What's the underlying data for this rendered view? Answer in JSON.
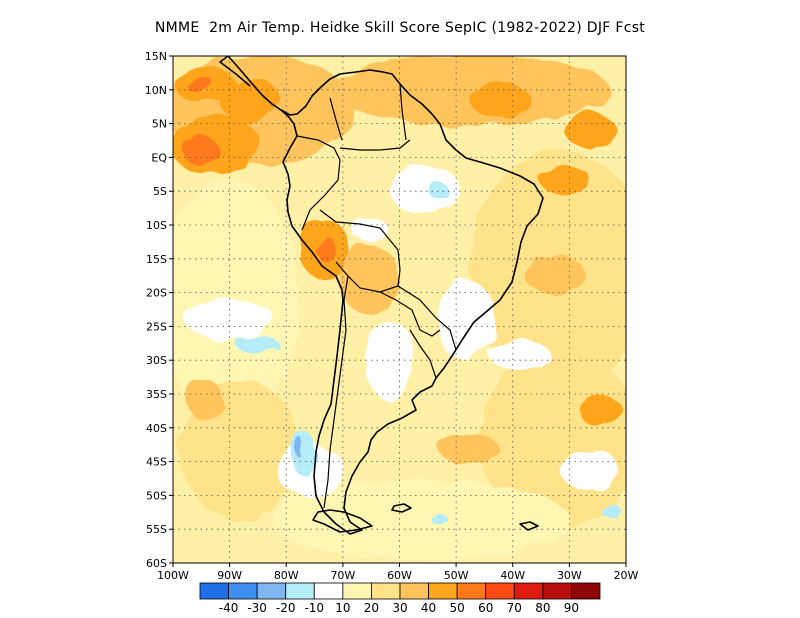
{
  "title": "NMME  2m Air Temp. Heidke Skill Score SepIC (1982-2022) DJF Fcst",
  "map": {
    "lon_range": [
      -100,
      -20
    ],
    "lat_range": [
      -60,
      15
    ],
    "lat_ticks": [
      {
        "value": 15,
        "label": "15N"
      },
      {
        "value": 10,
        "label": "10N"
      },
      {
        "value": 5,
        "label": "5N"
      },
      {
        "value": 0,
        "label": "EQ"
      },
      {
        "value": -5,
        "label": "5S"
      },
      {
        "value": -10,
        "label": "10S"
      },
      {
        "value": -15,
        "label": "15S"
      },
      {
        "value": -20,
        "label": "20S"
      },
      {
        "value": -25,
        "label": "25S"
      },
      {
        "value": -30,
        "label": "30S"
      },
      {
        "value": -35,
        "label": "35S"
      },
      {
        "value": -40,
        "label": "40S"
      },
      {
        "value": -45,
        "label": "45S"
      },
      {
        "value": -50,
        "label": "50S"
      },
      {
        "value": -55,
        "label": "55S"
      },
      {
        "value": -60,
        "label": "60S"
      }
    ],
    "lon_ticks": [
      {
        "value": -100,
        "label": "100W"
      },
      {
        "value": -90,
        "label": "90W"
      },
      {
        "value": -80,
        "label": "80W"
      },
      {
        "value": -70,
        "label": "70W"
      },
      {
        "value": -60,
        "label": "60W"
      },
      {
        "value": -50,
        "label": "50W"
      },
      {
        "value": -40,
        "label": "40W"
      },
      {
        "value": -30,
        "label": "30W"
      },
      {
        "value": -20,
        "label": "20W"
      }
    ],
    "gridlines": "dotted"
  },
  "colorbar": {
    "labels": [
      "-40",
      "-30",
      "-20",
      "-10",
      "10",
      "20",
      "30",
      "40",
      "50",
      "60",
      "70",
      "80",
      "90"
    ],
    "colors": [
      "#1f6fe8",
      "#3f8ff0",
      "#7fb6f2",
      "#b4ecf8",
      "#ffffff",
      "#fff6b3",
      "#ffe38a",
      "#ffc55c",
      "#ffa51f",
      "#ff7a1a",
      "#ff4a14",
      "#e01b10",
      "#b80f0c",
      "#8e0606"
    ]
  }
}
